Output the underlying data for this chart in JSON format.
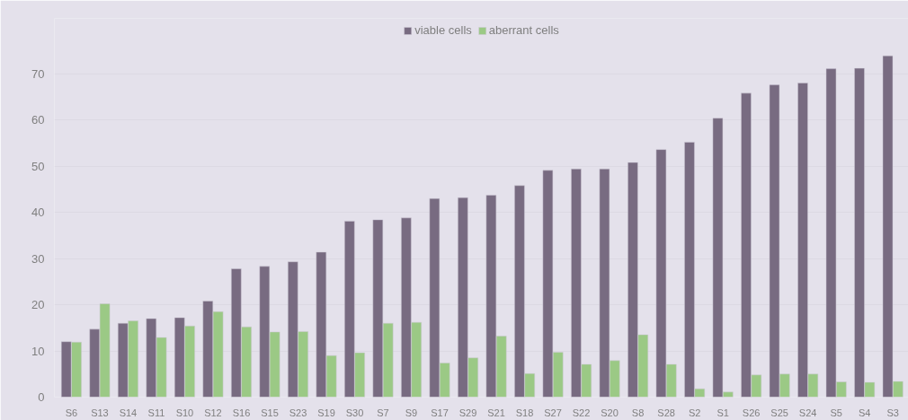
{
  "chart_data": {
    "type": "bar",
    "categories": [
      "S6",
      "S13",
      "S14",
      "S11",
      "S10",
      "S12",
      "S16",
      "S15",
      "S23",
      "S19",
      "S30",
      "S7",
      "S9",
      "S17",
      "S29",
      "S21",
      "S18",
      "S27",
      "S22",
      "S20",
      "S8",
      "S28",
      "S2",
      "S1",
      "S26",
      "S25",
      "S24",
      "S5",
      "S4",
      "S3"
    ],
    "series": [
      {
        "name": "viable cells",
        "color": "#786b81",
        "values": [
          12,
          14.7,
          16,
          17,
          17.2,
          20.8,
          27.8,
          28.3,
          29.3,
          31.4,
          38.1,
          38.4,
          38.8,
          43,
          43.2,
          43.7,
          45.8,
          49.1,
          49.4,
          49.4,
          50.8,
          53.6,
          55.2,
          60.4,
          65.8,
          67.6,
          68,
          71.1,
          71.2,
          73.9
        ]
      },
      {
        "name": "aberrant cells",
        "color": "#9bc985",
        "values": [
          11.9,
          20.2,
          16.5,
          12.9,
          15.4,
          18.5,
          15.2,
          14.1,
          14.2,
          9,
          9.6,
          16,
          16.2,
          7.4,
          8.5,
          13.2,
          5.1,
          9.7,
          7.1,
          7.9,
          13.5,
          7.1,
          1.8,
          1.1,
          4.8,
          5,
          5,
          3.3,
          3.2,
          3.4
        ]
      }
    ],
    "ylim": [
      0,
      82
    ],
    "yticks": [
      0,
      10,
      20,
      30,
      40,
      50,
      60,
      70
    ],
    "grid": "y",
    "legend": "top"
  }
}
